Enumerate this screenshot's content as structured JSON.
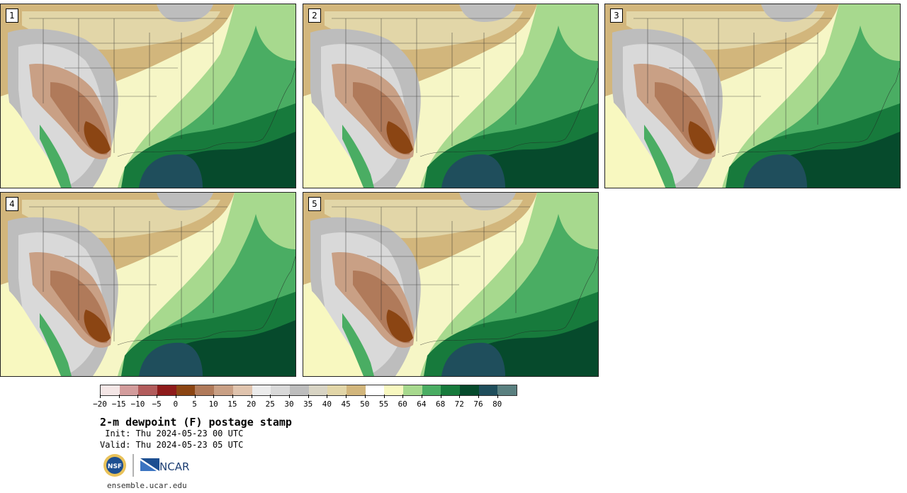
{
  "panels": [
    {
      "label": "1"
    },
    {
      "label": "2"
    },
    {
      "label": "3"
    },
    {
      "label": "4"
    },
    {
      "label": "5"
    }
  ],
  "colorbar": {
    "colors": [
      "#f4e6e6",
      "#d39c9c",
      "#b25c5c",
      "#8e1b1b",
      "#8b4513",
      "#b07a5a",
      "#c9a085",
      "#e0c4ae",
      "#ececec",
      "#d9d9d9",
      "#bdbdbd",
      "#d8d4c4",
      "#e2d6a8",
      "#d2b67c",
      "#ffffff",
      "#f8f8c0",
      "#a7d98e",
      "#4aad63",
      "#177a3c",
      "#064a2c",
      "#1f4e5c",
      "#5a8080"
    ],
    "ticks": [
      "−20",
      "−15",
      "−10",
      "−5",
      "0",
      "5",
      "10",
      "15",
      "20",
      "25",
      "30",
      "35",
      "40",
      "45",
      "50",
      "55",
      "60",
      "64",
      "68",
      "72",
      "76",
      "80"
    ]
  },
  "title": "2-m dewpoint (F) postage stamp",
  "init_line": " Init: Thu 2024-05-23 00 UTC",
  "valid_line": "Valid: Thu 2024-05-23 05 UTC",
  "logos": {
    "nsf": "NSF",
    "ncar": "NCAR"
  },
  "footer": "ensemble.ucar.edu"
}
